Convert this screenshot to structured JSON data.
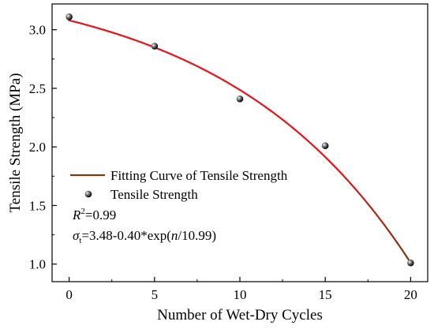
{
  "chart_data": {
    "type": "scatter",
    "xlabel": "Number of Wet-Dry Cycles",
    "ylabel": "Tensile Strength (MPa)",
    "xlim": [
      -1,
      21
    ],
    "ylim": [
      0.85,
      3.22
    ],
    "x_ticks": [
      0,
      5,
      10,
      15,
      20
    ],
    "y_ticks": [
      1.0,
      1.5,
      2.0,
      2.5,
      3.0
    ],
    "x_tick_labels": [
      "0",
      "5",
      "10",
      "15",
      "20"
    ],
    "y_tick_labels": [
      "1.0",
      "1.5",
      "2.0",
      "2.5",
      "3.0"
    ],
    "series": [
      {
        "name": "Tensile Strength",
        "kind": "scatter",
        "x": [
          0,
          5,
          10,
          15,
          20
        ],
        "y": [
          3.11,
          2.86,
          2.41,
          2.01,
          1.01
        ]
      },
      {
        "name": "Fitting Curve of Tensile Strength",
        "kind": "fit",
        "equation": {
          "a": 3.48,
          "b": 0.4,
          "c": 10.99
        }
      }
    ],
    "legend_position": "lower-left",
    "grid": false,
    "annotations": {
      "r2_symbol": "R",
      "r2_sup": "2",
      "r2_value": "=0.99",
      "eq_symbol": "σ",
      "eq_sub": "t",
      "eq_body_1": "=3.48-0.40*exp(",
      "eq_var": "n",
      "eq_body_2": "/10.99)"
    },
    "colors": {
      "fit_start": "#e8141a",
      "fit_end": "#7a3a14",
      "marker": "#111111"
    }
  }
}
